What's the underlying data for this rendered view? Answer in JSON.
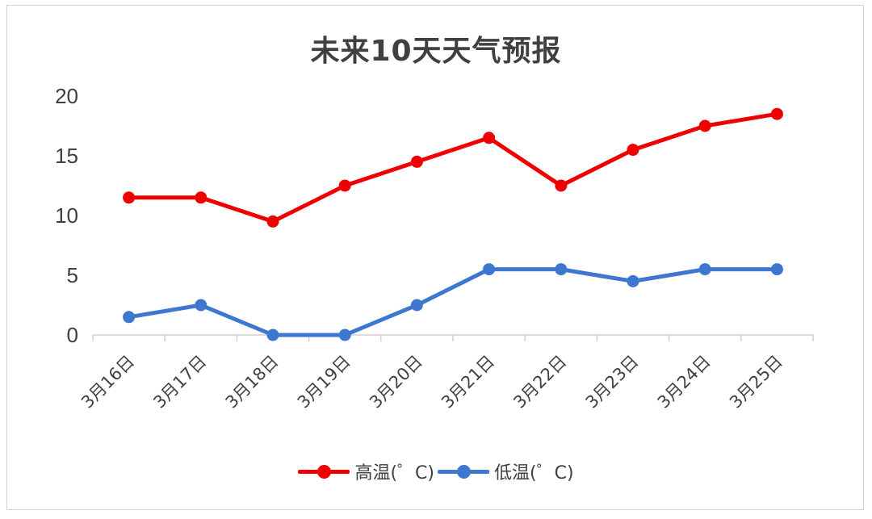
{
  "chart_data": {
    "type": "line",
    "title": "未来10天天气预报",
    "categories": [
      "3月16日",
      "3月17日",
      "3月18日",
      "3月19日",
      "3月20日",
      "3月21日",
      "3月22日",
      "3月23日",
      "3月24日",
      "3月25日"
    ],
    "series": [
      {
        "name": "高温(゜C)",
        "color": "#ee0000",
        "values": [
          11.5,
          11.5,
          9.5,
          12.5,
          14.5,
          16.5,
          12.5,
          15.5,
          17.5,
          18.5
        ]
      },
      {
        "name": "低温(゜C)",
        "color": "#3d77d0",
        "values": [
          1.5,
          2.5,
          0,
          0,
          2.5,
          5.5,
          5.5,
          4.5,
          5.5,
          5.5
        ]
      }
    ],
    "y_ticks": [
      "0",
      "5",
      "10",
      "15",
      "20"
    ],
    "ylim": [
      0,
      20
    ],
    "grid": false,
    "legend_position": "bottom"
  }
}
